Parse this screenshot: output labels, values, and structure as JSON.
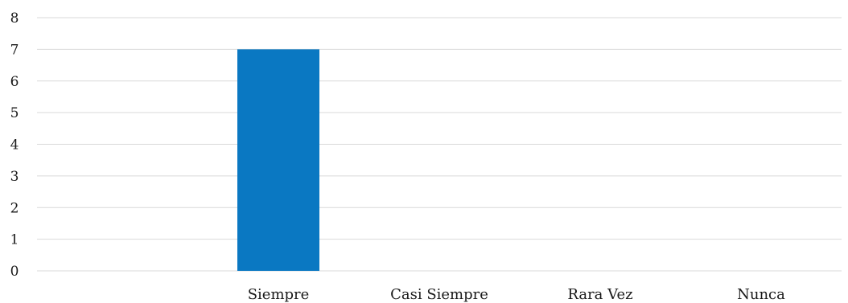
{
  "chart_data": {
    "type": "bar",
    "categories": [
      "",
      "Siempre",
      "Casi Siempre",
      "Rara Vez",
      "Nunca"
    ],
    "values": [
      0,
      7,
      0,
      0,
      0
    ],
    "ylim": [
      0,
      8
    ],
    "yticks": [
      "0",
      "1",
      "2",
      "3",
      "4",
      "5",
      "6",
      "7",
      "8"
    ],
    "grid": true,
    "bar_color": "#0a78c2"
  }
}
